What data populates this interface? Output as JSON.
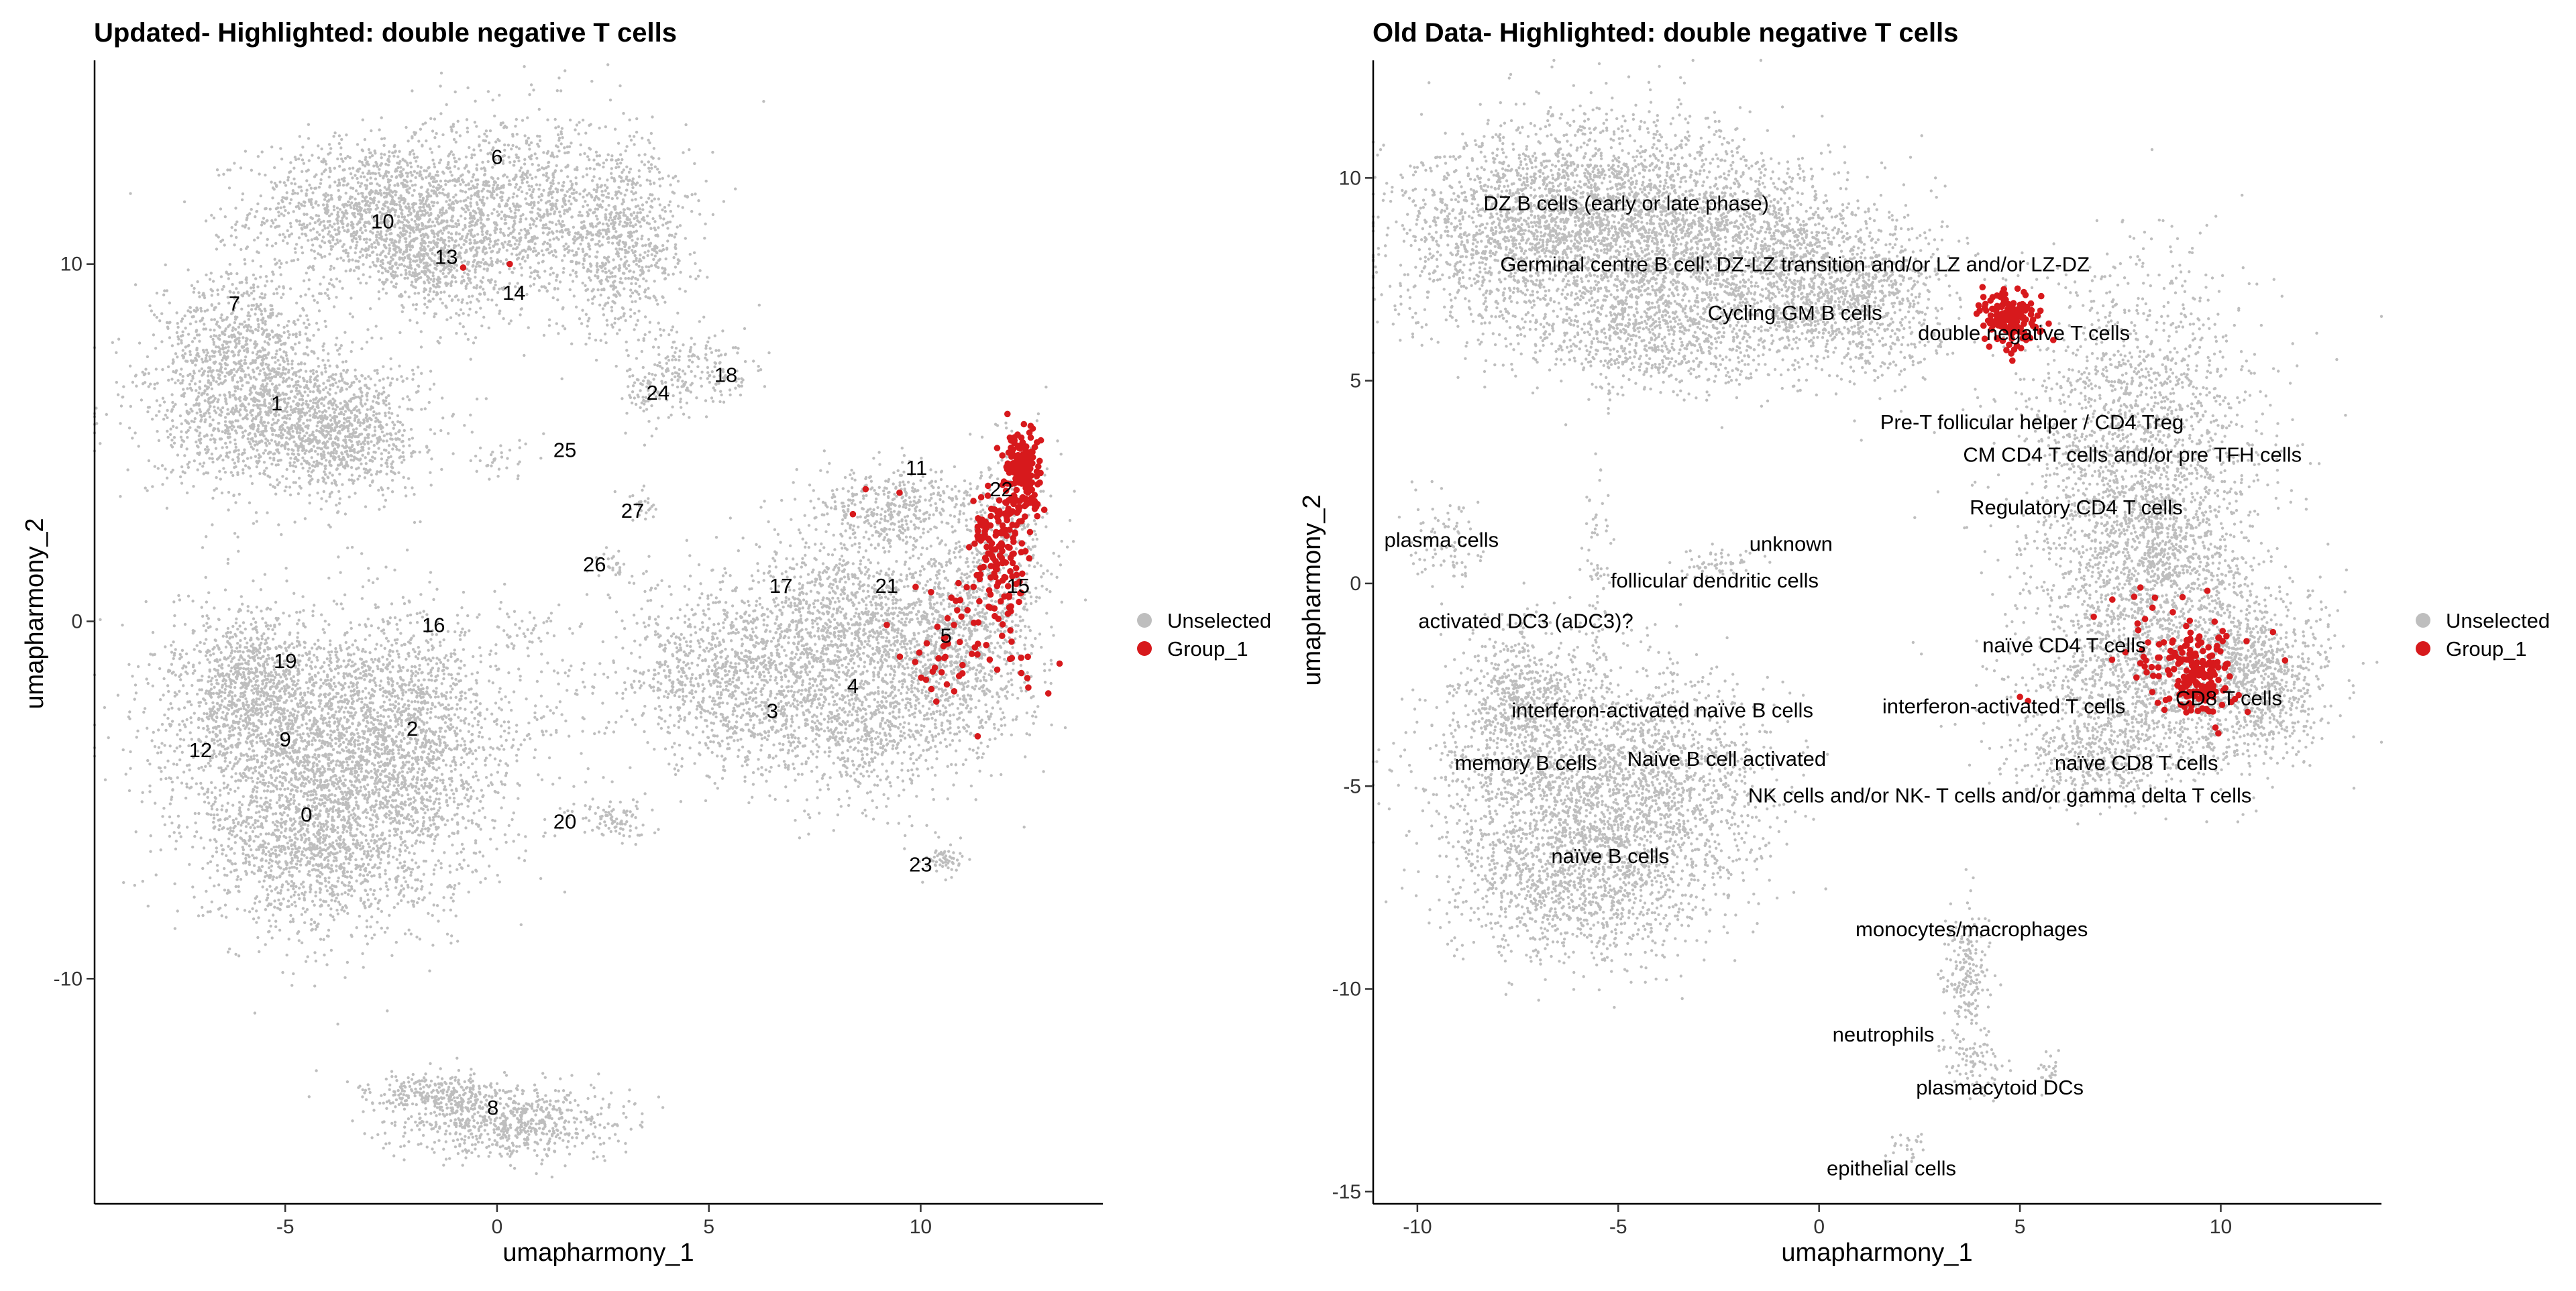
{
  "colors": {
    "unselected": "#BEBEBE",
    "group": "#D7191C",
    "axis": "#000000",
    "background": "#FFFFFF"
  },
  "chart_data": [
    {
      "type": "scatter",
      "title": "Updated- Highlighted: double negative T cells",
      "xlabel": "umapharmony_1",
      "ylabel": "umapharmony_2",
      "xlim": [
        -9.5,
        14.3
      ],
      "ylim": [
        -16.3,
        15.7
      ],
      "xticks": [
        -5,
        0,
        5,
        10
      ],
      "yticks": [
        -10,
        0,
        10
      ],
      "xtick_labels": [
        "-5",
        "0",
        "5",
        "10"
      ],
      "ytick_labels": [
        "-10",
        "0",
        "10"
      ],
      "grid": false,
      "legend": {
        "placement": "right",
        "entries": [
          "Unselected",
          "Group_1"
        ]
      },
      "series": [
        {
          "name": "Unselected",
          "color": "#BEBEBE",
          "clouds": [
            {
              "x": -3.0,
              "y": 11.5,
              "sx": 1.4,
              "sy": 1.0,
              "n": 1200
            },
            {
              "x": 0.5,
              "y": 11.5,
              "sx": 1.6,
              "sy": 1.4,
              "n": 1300
            },
            {
              "x": 3.0,
              "y": 10.5,
              "sx": 0.8,
              "sy": 1.2,
              "n": 600
            },
            {
              "x": -1.5,
              "y": 10.0,
              "sx": 0.8,
              "sy": 0.6,
              "n": 400
            },
            {
              "x": -6.0,
              "y": 7.5,
              "sx": 1.0,
              "sy": 1.2,
              "n": 900
            },
            {
              "x": -5.0,
              "y": 5.5,
              "sx": 1.6,
              "sy": 1.0,
              "n": 1200
            },
            {
              "x": -3.5,
              "y": 5.2,
              "sx": 0.7,
              "sy": 0.9,
              "n": 400
            },
            {
              "x": -5.0,
              "y": -3.0,
              "sx": 1.6,
              "sy": 1.6,
              "n": 1500
            },
            {
              "x": -3.0,
              "y": -4.5,
              "sx": 1.8,
              "sy": 1.8,
              "n": 1600
            },
            {
              "x": -4.3,
              "y": -6.5,
              "sx": 1.3,
              "sy": 1.2,
              "n": 900
            },
            {
              "x": -2.0,
              "y": -2.5,
              "sx": 0.9,
              "sy": 1.5,
              "n": 700
            },
            {
              "x": -5.8,
              "y": -1.6,
              "sx": 0.8,
              "sy": 0.9,
              "n": 500
            },
            {
              "x": 0.3,
              "y": -14.0,
              "sx": 1.3,
              "sy": 0.5,
              "n": 700
            },
            {
              "x": -1.5,
              "y": -13.2,
              "sx": 0.8,
              "sy": 0.3,
              "n": 250
            },
            {
              "x": 4.5,
              "y": 7.0,
              "sx": 0.8,
              "sy": 0.6,
              "n": 200
            },
            {
              "x": 3.6,
              "y": 6.3,
              "sx": 0.3,
              "sy": 0.4,
              "n": 60
            },
            {
              "x": 2.7,
              "y": -5.6,
              "sx": 0.5,
              "sy": 0.3,
              "n": 90
            },
            {
              "x": 1.3,
              "y": -2.5,
              "sx": 0.6,
              "sy": 1.0,
              "n": 60
            },
            {
              "x": 5.5,
              "y": -1.5,
              "sx": 1.4,
              "sy": 1.3,
              "n": 1000
            },
            {
              "x": 8.5,
              "y": -2.5,
              "sx": 1.6,
              "sy": 1.2,
              "n": 1200
            },
            {
              "x": 8.5,
              "y": 0.3,
              "sx": 1.3,
              "sy": 1.1,
              "n": 900
            },
            {
              "x": 10.8,
              "y": -0.5,
              "sx": 0.9,
              "sy": 1.3,
              "n": 800
            },
            {
              "x": 9.3,
              "y": 3.2,
              "sx": 1.0,
              "sy": 0.6,
              "n": 400
            },
            {
              "x": 11.9,
              "y": 2.0,
              "sx": 0.6,
              "sy": 1.6,
              "n": 350
            },
            {
              "x": 10.5,
              "y": -6.6,
              "sx": 0.3,
              "sy": 0.3,
              "n": 60
            },
            {
              "x": 0.6,
              "y": -0.3,
              "sx": 0.4,
              "sy": 0.4,
              "n": 40
            },
            {
              "x": 2.7,
              "y": 1.6,
              "sx": 0.2,
              "sy": 0.3,
              "n": 25
            },
            {
              "x": 3.4,
              "y": 3.3,
              "sx": 0.2,
              "sy": 0.3,
              "n": 25
            },
            {
              "x": 0.1,
              "y": 4.5,
              "sx": 0.4,
              "sy": 0.3,
              "n": 35
            }
          ]
        },
        {
          "name": "Group_1",
          "color": "#D7191C",
          "clouds": [
            {
              "x": 12.4,
              "y": 4.2,
              "sx": 0.22,
              "sy": 0.6,
              "n": 160
            },
            {
              "x": 11.9,
              "y": 2.0,
              "sx": 0.35,
              "sy": 0.9,
              "n": 140
            },
            {
              "x": 11.4,
              "y": -0.5,
              "sx": 0.8,
              "sy": 1.0,
              "n": 55
            },
            {
              "x": 10.5,
              "y": -1.5,
              "sx": 0.5,
              "sy": 0.5,
              "n": 12
            }
          ],
          "points": [
            [
              -0.8,
              9.9
            ],
            [
              0.3,
              10.0
            ],
            [
              8.7,
              3.7
            ],
            [
              9.5,
              3.6
            ],
            [
              8.4,
              3.0
            ],
            [
              9.2,
              -0.1
            ]
          ]
        }
      ],
      "cluster_labels": [
        {
          "text": "6",
          "x": 0.0,
          "y": 12.8
        },
        {
          "text": "10",
          "x": -2.7,
          "y": 11.0
        },
        {
          "text": "13",
          "x": -1.2,
          "y": 10.0
        },
        {
          "text": "14",
          "x": 0.4,
          "y": 9.0
        },
        {
          "text": "7",
          "x": -6.2,
          "y": 8.7
        },
        {
          "text": "1",
          "x": -5.2,
          "y": 5.9
        },
        {
          "text": "24",
          "x": 3.8,
          "y": 6.2
        },
        {
          "text": "18",
          "x": 5.4,
          "y": 6.7
        },
        {
          "text": "25",
          "x": 1.6,
          "y": 4.6
        },
        {
          "text": "27",
          "x": 3.2,
          "y": 2.9
        },
        {
          "text": "26",
          "x": 2.3,
          "y": 1.4
        },
        {
          "text": "11",
          "x": 9.9,
          "y": 4.1
        },
        {
          "text": "22",
          "x": 11.9,
          "y": 3.5
        },
        {
          "text": "17",
          "x": 6.7,
          "y": 0.8
        },
        {
          "text": "21",
          "x": 9.2,
          "y": 0.8
        },
        {
          "text": "15",
          "x": 12.3,
          "y": 0.8
        },
        {
          "text": "16",
          "x": -1.5,
          "y": -0.3
        },
        {
          "text": "19",
          "x": -5.0,
          "y": -1.3
        },
        {
          "text": "5",
          "x": 10.6,
          "y": -0.6
        },
        {
          "text": "4",
          "x": 8.4,
          "y": -2.0
        },
        {
          "text": "3",
          "x": 6.5,
          "y": -2.7
        },
        {
          "text": "2",
          "x": -2.0,
          "y": -3.2
        },
        {
          "text": "12",
          "x": -7.0,
          "y": -3.8
        },
        {
          "text": "9",
          "x": -5.0,
          "y": -3.5
        },
        {
          "text": "0",
          "x": -4.5,
          "y": -5.6
        },
        {
          "text": "20",
          "x": 1.6,
          "y": -5.8
        },
        {
          "text": "23",
          "x": 10.0,
          "y": -7.0
        },
        {
          "text": "8",
          "x": -0.1,
          "y": -13.8
        }
      ]
    },
    {
      "type": "scatter",
      "title": "Old Data- Highlighted: double negative T cells",
      "xlabel": "umapharmony_1",
      "ylabel": "umapharmony_2",
      "xlim": [
        -11.1,
        14.0
      ],
      "ylim": [
        -15.3,
        12.9
      ],
      "xticks": [
        -10,
        -5,
        0,
        5,
        10
      ],
      "yticks": [
        -15,
        -10,
        -5,
        0,
        5,
        10
      ],
      "xtick_labels": [
        "-10",
        "-5",
        "0",
        "5",
        "10"
      ],
      "ytick_labels": [
        "-15",
        "-10",
        "-5",
        "0",
        "5",
        "10"
      ],
      "grid": false,
      "legend": {
        "placement": "right",
        "entries": [
          "Unselected",
          "Group_1"
        ]
      },
      "series": [
        {
          "name": "Unselected",
          "color": "#BEBEBE",
          "clouds": [
            {
              "x": -7.5,
              "y": 8.5,
              "sx": 1.6,
              "sy": 1.3,
              "n": 1400
            },
            {
              "x": -5.0,
              "y": 9.2,
              "sx": 1.8,
              "sy": 1.2,
              "n": 1500
            },
            {
              "x": -2.0,
              "y": 8.3,
              "sx": 1.6,
              "sy": 1.1,
              "n": 1300
            },
            {
              "x": 0.8,
              "y": 7.0,
              "sx": 1.3,
              "sy": 1.0,
              "n": 1000
            },
            {
              "x": -4.0,
              "y": 6.2,
              "sx": 1.5,
              "sy": 0.8,
              "n": 800
            },
            {
              "x": 8.0,
              "y": 3.5,
              "sx": 1.5,
              "sy": 2.0,
              "n": 1600
            },
            {
              "x": 8.3,
              "y": 0.3,
              "sx": 1.4,
              "sy": 1.3,
              "n": 1100
            },
            {
              "x": 8.5,
              "y": -2.5,
              "sx": 1.7,
              "sy": 1.1,
              "n": 1200
            },
            {
              "x": 11.0,
              "y": -2.3,
              "sx": 0.9,
              "sy": 1.0,
              "n": 700
            },
            {
              "x": 6.8,
              "y": -4.3,
              "sx": 1.0,
              "sy": 0.6,
              "n": 400
            },
            {
              "x": -6.5,
              "y": -4.7,
              "sx": 1.6,
              "sy": 1.6,
              "n": 1500
            },
            {
              "x": -5.8,
              "y": -7.2,
              "sx": 1.5,
              "sy": 1.1,
              "n": 1100
            },
            {
              "x": -3.5,
              "y": -5.0,
              "sx": 1.3,
              "sy": 1.3,
              "n": 900
            },
            {
              "x": -7.5,
              "y": -2.8,
              "sx": 0.7,
              "sy": 0.8,
              "n": 400
            },
            {
              "x": 3.7,
              "y": -9.8,
              "sx": 0.3,
              "sy": 0.9,
              "n": 200
            },
            {
              "x": 3.8,
              "y": -11.8,
              "sx": 0.4,
              "sy": 0.4,
              "n": 80
            },
            {
              "x": -9.3,
              "y": 1.0,
              "sx": 0.5,
              "sy": 0.5,
              "n": 90
            },
            {
              "x": -5.5,
              "y": 0.5,
              "sx": 0.2,
              "sy": 1.2,
              "n": 70
            },
            {
              "x": -2.5,
              "y": 0.5,
              "sx": 0.5,
              "sy": 0.2,
              "n": 60
            },
            {
              "x": 5.7,
              "y": -12.0,
              "sx": 0.15,
              "sy": 0.3,
              "n": 25
            },
            {
              "x": 2.1,
              "y": -14.0,
              "sx": 0.2,
              "sy": 0.2,
              "n": 25
            }
          ]
        },
        {
          "name": "Group_1",
          "color": "#D7191C",
          "clouds": [
            {
              "x": 4.8,
              "y": 6.5,
              "sx": 0.35,
              "sy": 0.3,
              "n": 170
            },
            {
              "x": 9.4,
              "y": -2.3,
              "sx": 0.45,
              "sy": 0.5,
              "n": 170
            },
            {
              "x": 8.5,
              "y": -1.6,
              "sx": 0.8,
              "sy": 0.6,
              "n": 30
            }
          ],
          "points": [
            [
              7.3,
              -0.4
            ],
            [
              8.0,
              -0.1
            ],
            [
              8.3,
              -0.6
            ],
            [
              11.3,
              -1.2
            ],
            [
              11.6,
              -1.9
            ],
            [
              5.0,
              -2.8
            ],
            [
              5.2,
              -2.9
            ]
          ]
        }
      ],
      "cluster_labels": [
        {
          "text": "DZ B cells (early or late phase)",
          "x": -4.8,
          "y": 9.2
        },
        {
          "text": "Germinal centre B cell: DZ-LZ transition and/or LZ and/or LZ-DZ",
          "x": -0.6,
          "y": 7.7
        },
        {
          "text": "Cycling GM B cells",
          "x": -0.6,
          "y": 6.5
        },
        {
          "text": "double negative T cells",
          "x": 5.1,
          "y": 6.0
        },
        {
          "text": "Pre-T follicular helper / CD4 Treg",
          "x": 5.3,
          "y": 3.8
        },
        {
          "text": "CM CD4 T cells  and/or pre TFH cells",
          "x": 7.8,
          "y": 3.0
        },
        {
          "text": "Regulatory CD4 T cells",
          "x": 6.4,
          "y": 1.7
        },
        {
          "text": "plasma cells",
          "x": -9.4,
          "y": 0.9
        },
        {
          "text": "unknown",
          "x": -0.7,
          "y": 0.8
        },
        {
          "text": "follicular dendritic cells",
          "x": -2.6,
          "y": -0.1
        },
        {
          "text": "activated DC3 (aDC3)?",
          "x": -7.3,
          "y": -1.1
        },
        {
          "text": "naïve CD4 T cells",
          "x": 6.1,
          "y": -1.7
        },
        {
          "text": "interferon-activated T cells",
          "x": 4.6,
          "y": -3.2
        },
        {
          "text": "CD8 T cells",
          "x": 10.2,
          "y": -3.0
        },
        {
          "text": "interferon-activated naïve B cells",
          "x": -3.9,
          "y": -3.3
        },
        {
          "text": "memory B cells",
          "x": -7.3,
          "y": -4.6
        },
        {
          "text": "Naive B cell activated",
          "x": -2.3,
          "y": -4.5
        },
        {
          "text": "naïve CD8 T cells",
          "x": 7.9,
          "y": -4.6
        },
        {
          "text": "NK cells and/or NK- T cells and/or gamma delta T cells",
          "x": 4.5,
          "y": -5.4
        },
        {
          "text": "naïve B cells",
          "x": -5.2,
          "y": -6.9
        },
        {
          "text": "monocytes/macrophages",
          "x": 3.8,
          "y": -8.7
        },
        {
          "text": "neutrophils",
          "x": 1.6,
          "y": -11.3
        },
        {
          "text": "plasmacytoid DCs",
          "x": 4.5,
          "y": -12.6
        },
        {
          "text": "epithelial cells",
          "x": 1.8,
          "y": -14.6
        }
      ]
    }
  ]
}
